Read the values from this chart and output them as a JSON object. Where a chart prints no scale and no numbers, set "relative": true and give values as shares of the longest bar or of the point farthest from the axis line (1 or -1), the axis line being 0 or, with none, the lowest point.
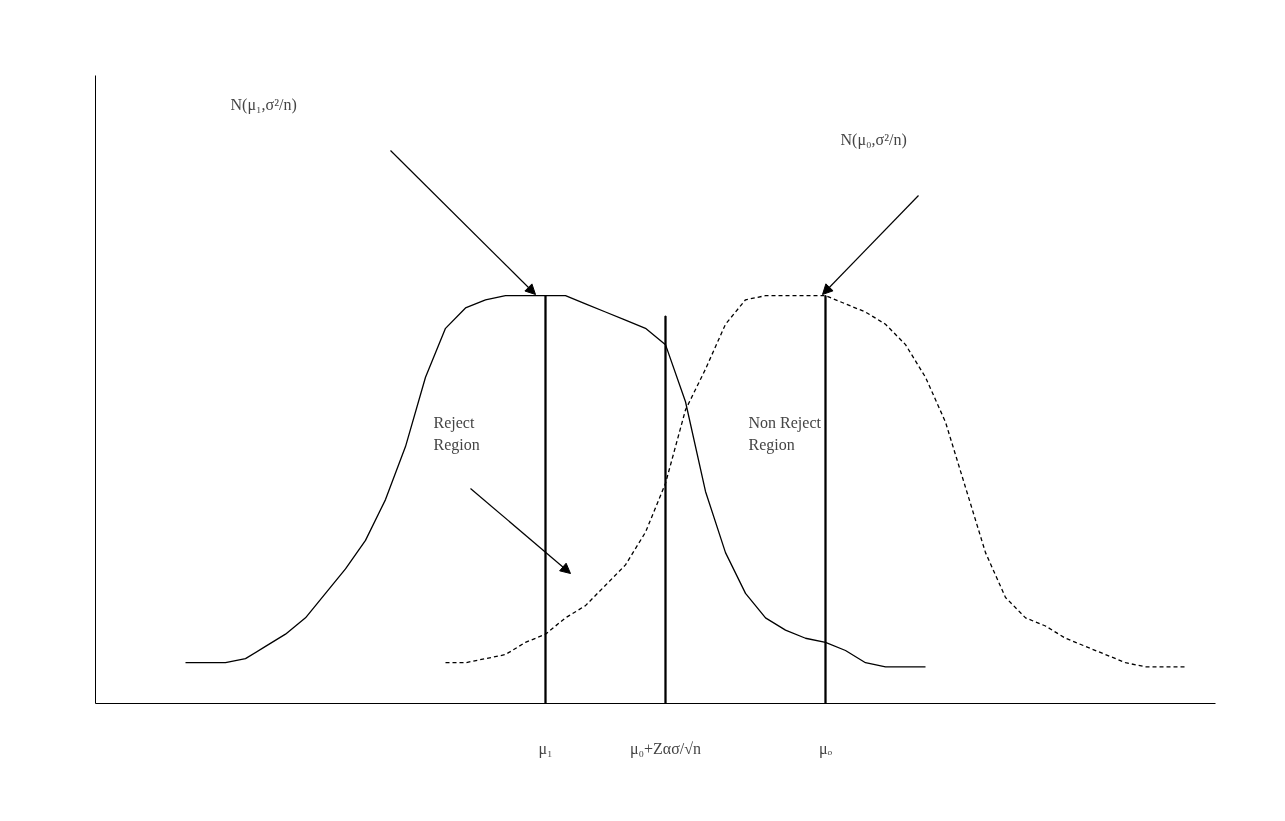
{
  "chart_data": {
    "type": "line",
    "relative": true,
    "categories": [
      null,
      null,
      null,
      null,
      null,
      null,
      null,
      null,
      null,
      null,
      null,
      null,
      null,
      null,
      null,
      null,
      null,
      null,
      null,
      null,
      null,
      null,
      "μ₁",
      null,
      null,
      null,
      null,
      null,
      "μ₀+Zασ/√n",
      null,
      null,
      null,
      null,
      null,
      null,
      null,
      "μₒ",
      null,
      null,
      null,
      null,
      null,
      null,
      null,
      null,
      null,
      null,
      null,
      null,
      null,
      null,
      null,
      null,
      null,
      null,
      null
    ],
    "tick_labels": "x",
    "series": [
      {
        "color": "#000000",
        "line_style": "solid",
        "values": [
          null,
          null,
          null,
          null,
          0.1,
          0.1,
          0.1,
          0.11,
          0.14,
          0.17,
          0.21,
          0.27,
          0.33,
          0.4,
          0.5,
          0.63,
          0.8,
          0.92,
          0.97,
          0.99,
          1.0,
          1.0,
          1.0,
          1.0,
          0.98,
          0.96,
          0.94,
          0.92,
          0.88,
          0.74,
          0.52,
          0.37,
          0.27,
          0.21,
          0.18,
          0.16,
          0.15,
          0.13,
          0.1,
          0.09,
          0.09,
          0.09,
          null,
          null,
          null,
          null,
          null,
          null,
          null,
          null,
          null,
          null,
          null,
          null,
          null,
          null
        ]
      },
      {
        "color": "#000000",
        "line_style": "dashed",
        "values": [
          null,
          null,
          null,
          null,
          null,
          null,
          null,
          null,
          null,
          null,
          null,
          null,
          null,
          null,
          null,
          null,
          null,
          0.1,
          0.1,
          0.11,
          0.12,
          0.15,
          0.17,
          0.21,
          0.24,
          0.29,
          0.34,
          0.42,
          0.54,
          0.72,
          0.82,
          0.93,
          0.99,
          1.0,
          1.0,
          1.0,
          1.0,
          0.98,
          0.96,
          0.93,
          0.88,
          0.8,
          0.69,
          0.53,
          0.37,
          0.26,
          0.21,
          0.19,
          0.16,
          0.14,
          0.12,
          0.1,
          0.09,
          0.09,
          0.09,
          null
        ]
      },
      {
        "type": "bar",
        "color": "#000000",
        "values": [
          null,
          null,
          null,
          null,
          null,
          null,
          null,
          null,
          null,
          null,
          null,
          null,
          null,
          null,
          null,
          null,
          null,
          null,
          null,
          null,
          null,
          null,
          1.0,
          null,
          null,
          null,
          null,
          null,
          0.95,
          null,
          null,
          null,
          null,
          null,
          null,
          null,
          1.0,
          null,
          null,
          null,
          null,
          null,
          null,
          null,
          null,
          null,
          null,
          null,
          null,
          null,
          null,
          null,
          null,
          null,
          null,
          null
        ]
      }
    ],
    "annotations": [
      "N(μ₁,σ²/n)",
      "N(μ₀,σ²/n)",
      "Reject Region",
      "Non Reject Region"
    ]
  }
}
